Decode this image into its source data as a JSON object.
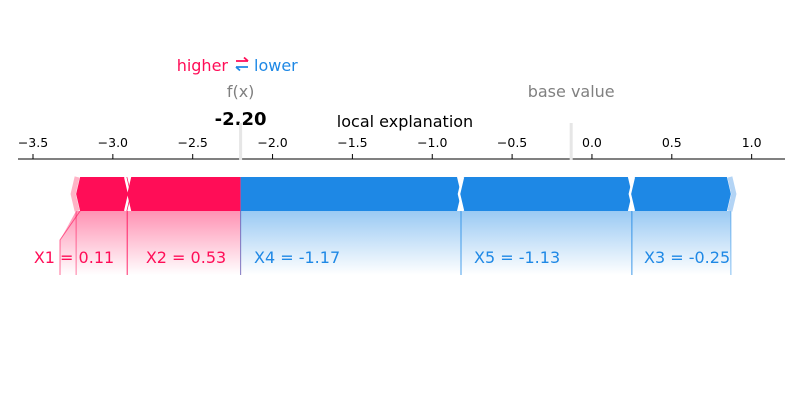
{
  "legend": {
    "higher_label": "higher",
    "lower_label": "lower",
    "arrows_glyph": "⇄",
    "higher_color": "#ff0d57",
    "lower_color": "#1e88e5"
  },
  "labels": {
    "fx_label": "f(x)",
    "fx_value_text": "-2.20",
    "base_value_label": "base value",
    "title": "local explanation"
  },
  "chart_data": {
    "type": "force",
    "title": "local explanation",
    "xlim": [
      -3.6,
      1.2
    ],
    "ticks": [
      -3.5,
      -3.0,
      -2.5,
      -2.0,
      -1.5,
      -1.0,
      -0.5,
      0.0,
      0.5,
      1.0
    ],
    "tick_labels": [
      "−3.5",
      "−3.0",
      "−2.5",
      "−2.0",
      "−1.5",
      "−1.0",
      "−0.5",
      "0.0",
      "0.5",
      "1.0"
    ],
    "fx": -2.2,
    "base_value": -0.13,
    "colors": {
      "positive": "#ff0d57",
      "negative": "#1e88e5"
    },
    "features": [
      {
        "name": "X1",
        "label": "X1 = 0.11",
        "start": -3.23,
        "end": -2.91,
        "effect": "higher"
      },
      {
        "name": "X2",
        "label": "X2 = 0.53",
        "start": -2.91,
        "end": -2.2,
        "effect": "higher"
      },
      {
        "name": "X4",
        "label": "X4 = -1.17",
        "start": -2.2,
        "end": -0.82,
        "effect": "lower"
      },
      {
        "name": "X5",
        "label": "X5 = -1.13",
        "start": -0.82,
        "end": 0.25,
        "effect": "lower"
      },
      {
        "name": "X3",
        "label": "X3 = -0.25",
        "start": 0.25,
        "end": 0.87,
        "effect": "lower"
      }
    ]
  }
}
